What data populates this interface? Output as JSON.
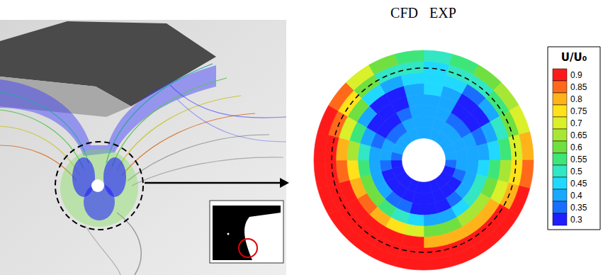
{
  "chart_data": {
    "type": "polar_contour",
    "halves": [
      {
        "label": "CFD",
        "theta": [
          180,
          360
        ]
      },
      {
        "label": "EXP",
        "theta": [
          0,
          180
        ]
      }
    ],
    "rlim": [
      0,
      1
    ],
    "r_edges": [
      0.2,
      0.3,
      0.4,
      0.5,
      0.6,
      0.7,
      0.8,
      0.9,
      1.0
    ],
    "theta_edges": [
      0,
      15,
      30,
      45,
      60,
      75,
      90,
      105,
      120,
      135,
      150,
      165,
      180,
      195,
      210,
      225,
      240,
      255,
      270,
      285,
      300,
      315,
      330,
      345,
      360
    ],
    "values": [
      [
        0.42,
        0.42,
        0.4,
        0.42,
        0.45,
        0.45,
        0.45,
        0.5
      ],
      [
        0.42,
        0.4,
        0.38,
        0.38,
        0.4,
        0.45,
        0.5,
        0.55
      ],
      [
        0.4,
        0.38,
        0.35,
        0.3,
        0.3,
        0.35,
        0.5,
        0.6
      ],
      [
        0.4,
        0.4,
        0.35,
        0.3,
        0.32,
        0.4,
        0.55,
        0.65
      ],
      [
        0.4,
        0.4,
        0.38,
        0.35,
        0.4,
        0.5,
        0.6,
        0.7
      ],
      [
        0.38,
        0.38,
        0.4,
        0.4,
        0.45,
        0.55,
        0.7,
        0.8
      ],
      [
        0.35,
        0.38,
        0.4,
        0.45,
        0.55,
        0.65,
        0.75,
        0.85
      ],
      [
        0.32,
        0.35,
        0.4,
        0.5,
        0.6,
        0.7,
        0.8,
        0.9
      ],
      [
        0.3,
        0.32,
        0.38,
        0.5,
        0.65,
        0.8,
        0.9,
        0.9
      ],
      [
        0.3,
        0.3,
        0.35,
        0.45,
        0.65,
        0.8,
        0.9,
        0.9
      ],
      [
        0.3,
        0.3,
        0.32,
        0.4,
        0.6,
        0.8,
        0.9,
        0.9
      ],
      [
        0.3,
        0.3,
        0.32,
        0.4,
        0.6,
        0.8,
        0.9,
        0.9
      ],
      [
        0.3,
        0.3,
        0.32,
        0.45,
        0.7,
        0.9,
        0.9,
        0.9
      ],
      [
        0.3,
        0.3,
        0.35,
        0.5,
        0.75,
        0.9,
        0.9,
        0.9
      ],
      [
        0.3,
        0.3,
        0.35,
        0.55,
        0.8,
        0.9,
        0.9,
        0.9
      ],
      [
        0.3,
        0.3,
        0.38,
        0.6,
        0.85,
        0.9,
        0.9,
        0.9
      ],
      [
        0.3,
        0.32,
        0.4,
        0.6,
        0.8,
        0.9,
        0.9,
        0.9
      ],
      [
        0.32,
        0.35,
        0.4,
        0.55,
        0.75,
        0.85,
        0.9,
        0.9
      ],
      [
        0.35,
        0.38,
        0.4,
        0.5,
        0.65,
        0.8,
        0.9,
        0.9
      ],
      [
        0.38,
        0.38,
        0.35,
        0.4,
        0.55,
        0.7,
        0.85,
        0.9
      ],
      [
        0.4,
        0.35,
        0.3,
        0.3,
        0.4,
        0.6,
        0.75,
        0.85
      ],
      [
        0.4,
        0.35,
        0.3,
        0.3,
        0.32,
        0.45,
        0.6,
        0.7
      ],
      [
        0.42,
        0.4,
        0.35,
        0.32,
        0.32,
        0.4,
        0.5,
        0.6
      ],
      [
        0.42,
        0.42,
        0.4,
        0.38,
        0.4,
        0.45,
        0.5,
        0.55
      ]
    ],
    "colorbar": {
      "title": "U/U₀",
      "ticks": [
        0.3,
        0.35,
        0.4,
        0.45,
        0.5,
        0.55,
        0.6,
        0.65,
        0.7,
        0.75,
        0.8,
        0.85,
        0.9
      ],
      "colors": [
        "#1e1eff",
        "#1a6eff",
        "#19a8ff",
        "#21d9ff",
        "#33e6c4",
        "#3ee67a",
        "#6fe040",
        "#a8e636",
        "#d9f02a",
        "#ffe21a",
        "#ffb31a",
        "#ff6a1a",
        "#ff1a1a"
      ]
    },
    "tick_labels": false
  }
}
